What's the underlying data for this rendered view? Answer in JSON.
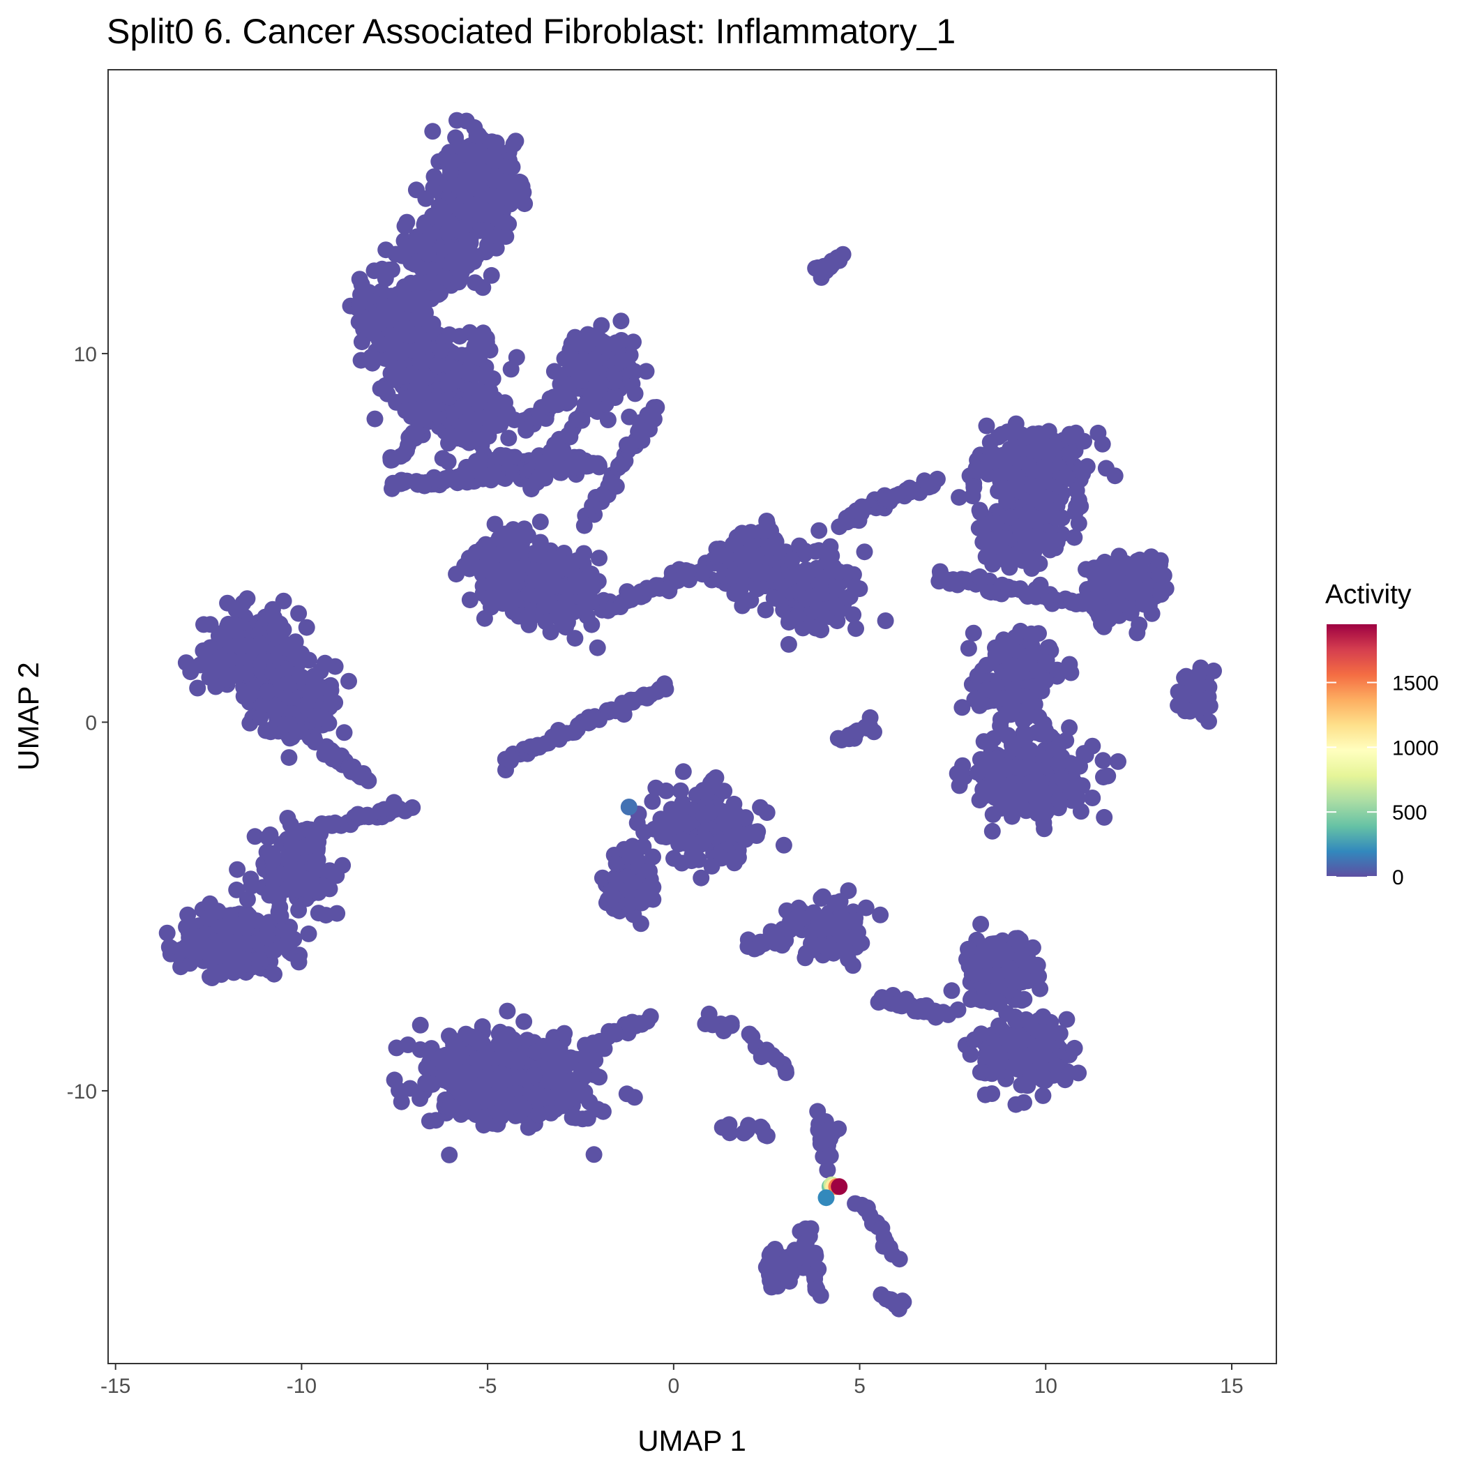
{
  "chart_data": {
    "type": "scatter",
    "title": "Split0 6. Cancer Associated Fibroblast: Inflammatory_1",
    "xlabel": "UMAP 1",
    "ylabel": "UMAP 2",
    "xlim": [
      -15.2,
      16.2
    ],
    "ylim": [
      -17.4,
      17.7
    ],
    "x_ticks": [
      -15,
      -10,
      -5,
      0,
      5,
      10,
      15
    ],
    "x_tick_labels": [
      "-15",
      "-10",
      "-5",
      "0",
      "5",
      "10",
      "15"
    ],
    "y_ticks": [
      10,
      0,
      -10
    ],
    "y_tick_labels": [
      "10",
      "0",
      "-10"
    ],
    "grid": false,
    "legend": {
      "title": "Activity",
      "placement": "right",
      "type": "colorbar",
      "range": [
        0,
        1950
      ],
      "ticks": [
        1500,
        1000,
        500,
        0
      ],
      "tick_labels": [
        "1500",
        "1000",
        "500",
        "0"
      ],
      "colors": [
        "#5E4FA2",
        "#3288BD",
        "#66C2A5",
        "#ABDDA4",
        "#E6F598",
        "#FFFFBF",
        "#FEE08B",
        "#FDAE61",
        "#F46D43",
        "#D53E4F",
        "#9E0142"
      ]
    },
    "base_color": "#5C52A4",
    "clusters": [
      {
        "x": -5.2,
        "y": 14.5,
        "sx": 0.9,
        "sy": 1.2,
        "n": 260
      },
      {
        "x": -6.2,
        "y": 12.8,
        "sx": 1.0,
        "sy": 0.8,
        "n": 200
      },
      {
        "x": -7.5,
        "y": 11.0,
        "sx": 1.0,
        "sy": 0.9,
        "n": 180
      },
      {
        "x": -6.5,
        "y": 9.4,
        "sx": 1.4,
        "sy": 1.1,
        "n": 240
      },
      {
        "x": -5.5,
        "y": 8.3,
        "sx": 0.9,
        "sy": 0.6,
        "n": 120
      },
      {
        "x": -2.0,
        "y": 9.7,
        "sx": 0.8,
        "sy": 0.8,
        "n": 160
      },
      {
        "x": -4.0,
        "y": 7.0,
        "sx": 1.6,
        "sy": 0.25,
        "n": 100
      },
      {
        "x": -4.5,
        "y": 4.2,
        "sx": 0.8,
        "sy": 0.9,
        "n": 140
      },
      {
        "x": -3.2,
        "y": 3.5,
        "sx": 0.9,
        "sy": 0.9,
        "n": 170
      },
      {
        "x": 2.2,
        "y": 4.4,
        "sx": 0.8,
        "sy": 0.8,
        "n": 180
      },
      {
        "x": 3.8,
        "y": 3.6,
        "sx": 1.0,
        "sy": 1.0,
        "n": 170
      },
      {
        "x": 9.8,
        "y": 6.9,
        "sx": 1.3,
        "sy": 0.9,
        "n": 260
      },
      {
        "x": 9.4,
        "y": 5.2,
        "sx": 1.0,
        "sy": 0.8,
        "n": 140
      },
      {
        "x": 12.2,
        "y": 3.7,
        "sx": 0.8,
        "sy": 0.8,
        "n": 150
      },
      {
        "x": 9.3,
        "y": 1.2,
        "sx": 0.9,
        "sy": 1.0,
        "n": 160
      },
      {
        "x": 9.6,
        "y": -1.4,
        "sx": 1.4,
        "sy": 1.0,
        "n": 260
      },
      {
        "x": 14.1,
        "y": 0.8,
        "sx": 0.4,
        "sy": 0.5,
        "n": 80
      },
      {
        "x": -11.3,
        "y": 1.8,
        "sx": 1.3,
        "sy": 1.1,
        "n": 220
      },
      {
        "x": -10.2,
        "y": 0.6,
        "sx": 1.0,
        "sy": 0.9,
        "n": 140
      },
      {
        "x": -11.6,
        "y": -6.0,
        "sx": 1.4,
        "sy": 0.8,
        "n": 220
      },
      {
        "x": -10.2,
        "y": -4.0,
        "sx": 1.0,
        "sy": 1.0,
        "n": 120
      },
      {
        "x": -4.6,
        "y": -9.6,
        "sx": 2.2,
        "sy": 1.1,
        "n": 420
      },
      {
        "x": 0.8,
        "y": -2.8,
        "sx": 1.2,
        "sy": 0.9,
        "n": 170
      },
      {
        "x": -1.2,
        "y": -4.4,
        "sx": 0.6,
        "sy": 0.7,
        "n": 80
      },
      {
        "x": 4.2,
        "y": -5.6,
        "sx": 0.8,
        "sy": 0.7,
        "n": 100
      },
      {
        "x": 8.8,
        "y": -6.8,
        "sx": 0.9,
        "sy": 1.0,
        "n": 150
      },
      {
        "x": 9.5,
        "y": -9.0,
        "sx": 1.1,
        "sy": 0.9,
        "n": 180
      },
      {
        "x": 4.1,
        "y": -11.3,
        "sx": 0.2,
        "sy": 0.5,
        "n": 40
      },
      {
        "x": 2.8,
        "y": -14.8,
        "sx": 0.4,
        "sy": 0.5,
        "n": 40
      }
    ],
    "paths": [
      {
        "from": [
          -7.5,
          6.4
        ],
        "to": [
          -2.0,
          7.0
        ],
        "n": 70
      },
      {
        "from": [
          -3.8,
          6.4
        ],
        "to": [
          -1.5,
          9.7
        ],
        "n": 60
      },
      {
        "from": [
          -4.0,
          8.0
        ],
        "to": [
          -2.5,
          9.3
        ],
        "n": 40
      },
      {
        "from": [
          -2.3,
          5.5
        ],
        "to": [
          -0.5,
          8.5
        ],
        "n": 40
      },
      {
        "from": [
          -7.5,
          7.0
        ],
        "to": [
          -5.0,
          10.5
        ],
        "n": 40
      },
      {
        "from": [
          -2.0,
          3.0
        ],
        "to": [
          1.5,
          4.5
        ],
        "n": 60
      },
      {
        "from": [
          4.5,
          5.5
        ],
        "to": [
          7.0,
          6.5
        ],
        "n": 40
      },
      {
        "from": [
          7.0,
          4.0
        ],
        "to": [
          11.0,
          3.2
        ],
        "n": 60
      },
      {
        "from": [
          -10.6,
          2.0
        ],
        "to": [
          -10.2,
          -0.2
        ],
        "n": 40
      },
      {
        "from": [
          -9.7,
          -0.4
        ],
        "to": [
          -8.2,
          -1.6
        ],
        "n": 25
      },
      {
        "from": [
          -4.6,
          -1.1
        ],
        "to": [
          -0.2,
          1.0
        ],
        "n": 50
      },
      {
        "from": [
          -10.0,
          -3.0
        ],
        "to": [
          -7.2,
          -2.3
        ],
        "n": 40
      },
      {
        "from": [
          -13.5,
          -6.2
        ],
        "to": [
          -11.0,
          -6.0
        ],
        "n": 30
      },
      {
        "from": [
          2.0,
          -6.2
        ],
        "to": [
          3.8,
          -5.2
        ],
        "n": 30
      },
      {
        "from": [
          5.6,
          -7.5
        ],
        "to": [
          7.3,
          -7.9
        ],
        "n": 30
      },
      {
        "from": [
          3.8,
          12.2
        ],
        "to": [
          4.5,
          12.6
        ],
        "n": 15
      },
      {
        "from": [
          4.5,
          -0.5
        ],
        "to": [
          5.4,
          0.0
        ],
        "n": 15
      },
      {
        "from": [
          -0.7,
          -8.0
        ],
        "to": [
          -2.3,
          -8.8
        ],
        "n": 20
      },
      {
        "from": [
          3.5,
          -13.6
        ],
        "to": [
          3.9,
          -15.5
        ],
        "n": 20
      },
      {
        "from": [
          5.0,
          -13.0
        ],
        "to": [
          6.0,
          -14.5
        ],
        "n": 15
      },
      {
        "from": [
          5.6,
          -15.5
        ],
        "to": [
          6.1,
          -15.9
        ],
        "n": 10
      },
      {
        "from": [
          0.9,
          -8.1
        ],
        "to": [
          1.6,
          -8.3
        ],
        "n": 8
      },
      {
        "from": [
          2.0,
          -8.5
        ],
        "to": [
          3.1,
          -9.5
        ],
        "n": 10
      },
      {
        "from": [
          1.4,
          -11.0
        ],
        "to": [
          2.6,
          -11.1
        ],
        "n": 10
      }
    ],
    "highlight_points": [
      {
        "x": -1.2,
        "y": -2.3,
        "value": 120
      },
      {
        "x": 4.2,
        "y": -12.6,
        "value": 420
      },
      {
        "x": 4.25,
        "y": -12.55,
        "value": 700
      },
      {
        "x": 4.3,
        "y": -12.6,
        "value": 1100
      },
      {
        "x": 4.38,
        "y": -12.6,
        "value": 1500
      },
      {
        "x": 4.45,
        "y": -12.6,
        "value": 1950
      },
      {
        "x": 4.1,
        "y": -12.9,
        "value": 200
      }
    ]
  }
}
